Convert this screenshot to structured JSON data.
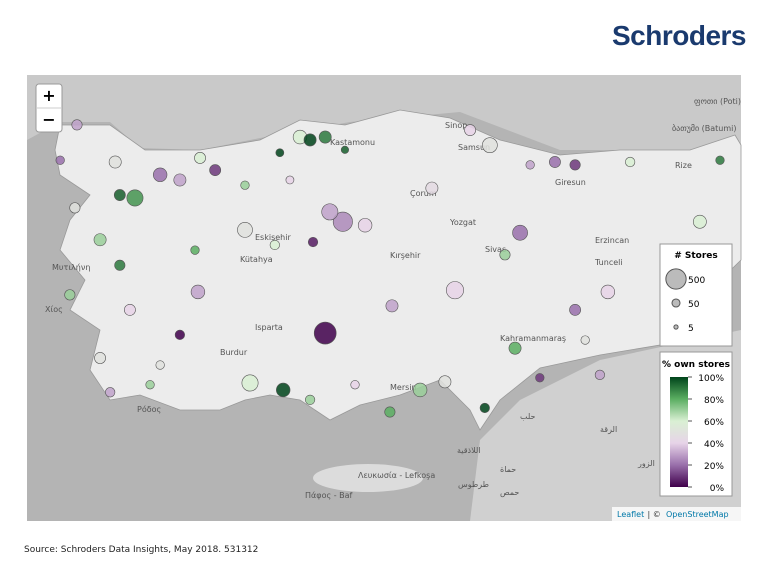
{
  "brand": "Schroders",
  "source": "Source: Schroders Data Insights, May 2018. 531312",
  "zoom_in": "+",
  "zoom_out": "−",
  "attribution": {
    "leaflet": "Leaflet",
    "separator": " | © ",
    "osm": "OpenStreetMap"
  },
  "place_labels": [
    "Sinop",
    "Samsun",
    "Kastamonu",
    "Çorum",
    "Yozgat",
    "Sivas",
    "Erzincan",
    "Tunceli",
    "Giresun",
    "Rize",
    "Kırşehir",
    "Eskişehir",
    "Kütahya",
    "Isparta",
    "Burdur",
    "Kahramanmaraş",
    "Mersin",
    "Μυτιλήνη",
    "Χίος",
    "Ρόδος",
    "Λευκωσία - Lefkoşa",
    "Πάφος - Baf",
    "ბათუმი (Batumi)",
    "ფოთი (Poti)",
    "حلب",
    "الرقة",
    "حماة",
    "طرطوس",
    "حمص",
    "اللاذقية",
    "الزور"
  ],
  "legend": {
    "size_title": "# Stores",
    "sizes": [
      500,
      50,
      5
    ],
    "color_title": "% own stores",
    "color_ticks": [
      {
        "value": 100,
        "label": "100%"
      },
      {
        "value": 80,
        "label": "80%"
      },
      {
        "value": 60,
        "label": "60%"
      },
      {
        "value": 40,
        "label": "40%"
      },
      {
        "value": 20,
        "label": "20%"
      },
      {
        "value": 0,
        "label": "0%"
      }
    ],
    "colors": [
      "#00441b",
      "#5aae61",
      "#d9f0d3",
      "#e7d4e8",
      "#9970ab",
      "#40004b"
    ]
  },
  "points": [
    {
      "lon": 32.7,
      "lat": 37.75,
      "stores": 600,
      "own_pct": 0
    },
    {
      "lon": 33.12,
      "lat": 39.67,
      "stores": 450,
      "own_pct": 25
    },
    {
      "lon": 32.81,
      "lat": 39.84,
      "stores": 300,
      "own_pct": 30
    },
    {
      "lon": 33.65,
      "lat": 39.61,
      "stores": 200,
      "own_pct": 40
    },
    {
      "lon": 35.79,
      "lat": 38.49,
      "stores": 350,
      "own_pct": 40
    },
    {
      "lon": 35.24,
      "lat": 40.25,
      "stores": 150,
      "own_pct": 45
    },
    {
      "lon": 30.91,
      "lat": 36.89,
      "stores": 300,
      "own_pct": 60
    },
    {
      "lon": 31.7,
      "lat": 36.77,
      "stores": 200,
      "own_pct": 100
    },
    {
      "lon": 37.34,
      "lat": 39.48,
      "stores": 250,
      "own_pct": 20
    },
    {
      "lon": 39.43,
      "lat": 38.46,
      "stores": 200,
      "own_pct": 40
    },
    {
      "lon": 41.62,
      "lat": 39.67,
      "stores": 180,
      "own_pct": 60
    },
    {
      "lon": 30.79,
      "lat": 39.53,
      "stores": 250,
      "own_pct": 50
    },
    {
      "lon": 29.67,
      "lat": 38.46,
      "stores": 200,
      "own_pct": 30
    },
    {
      "lon": 34.29,
      "lat": 38.22,
      "stores": 150,
      "own_pct": 30
    },
    {
      "lon": 34.96,
      "lat": 36.77,
      "stores": 200,
      "own_pct": 70
    },
    {
      "lon": 35.55,
      "lat": 36.91,
      "stores": 150,
      "own_pct": 50
    },
    {
      "lon": 37.22,
      "lat": 37.49,
      "stores": 150,
      "own_pct": 80
    },
    {
      "lon": 38.65,
      "lat": 38.15,
      "stores": 120,
      "own_pct": 20
    },
    {
      "lon": 36.98,
      "lat": 39.1,
      "stores": 100,
      "own_pct": 70
    },
    {
      "lon": 32.1,
      "lat": 41.13,
      "stores": 200,
      "own_pct": 60
    },
    {
      "lon": 32.7,
      "lat": 41.13,
      "stores": 150,
      "own_pct": 90
    },
    {
      "lon": 32.34,
      "lat": 41.08,
      "stores": 150,
      "own_pct": 100
    },
    {
      "lon": 36.62,
      "lat": 40.99,
      "stores": 250,
      "own_pct": 50
    },
    {
      "lon": 36.15,
      "lat": 41.25,
      "stores": 120,
      "own_pct": 40
    },
    {
      "lon": 38.17,
      "lat": 40.7,
      "stores": 120,
      "own_pct": 20
    },
    {
      "lon": 38.65,
      "lat": 40.65,
      "stores": 100,
      "own_pct": 10
    },
    {
      "lon": 39.96,
      "lat": 40.7,
      "stores": 80,
      "own_pct": 60
    },
    {
      "lon": 28.17,
      "lat": 40.08,
      "stores": 300,
      "own_pct": 85
    },
    {
      "lon": 27.81,
      "lat": 40.13,
      "stores": 120,
      "own_pct": 95
    },
    {
      "lon": 28.77,
      "lat": 40.48,
      "stores": 200,
      "own_pct": 20
    },
    {
      "lon": 29.24,
      "lat": 40.39,
      "stores": 150,
      "own_pct": 30
    },
    {
      "lon": 29.72,
      "lat": 40.77,
      "stores": 120,
      "own_pct": 60
    },
    {
      "lon": 30.08,
      "lat": 40.56,
      "stores": 120,
      "own_pct": 10
    },
    {
      "lon": 26.79,
      "lat": 41.34,
      "stores": 100,
      "own_pct": 30
    },
    {
      "lon": 27.7,
      "lat": 40.7,
      "stores": 150,
      "own_pct": 50
    },
    {
      "lon": 26.74,
      "lat": 39.91,
      "stores": 100,
      "own_pct": 50
    },
    {
      "lon": 27.34,
      "lat": 39.36,
      "stores": 150,
      "own_pct": 70
    },
    {
      "lon": 26.62,
      "lat": 38.41,
      "stores": 100,
      "own_pct": 70
    },
    {
      "lon": 27.81,
      "lat": 38.92,
      "stores": 100,
      "own_pct": 90
    },
    {
      "lon": 28.05,
      "lat": 38.15,
      "stores": 120,
      "own_pct": 40
    },
    {
      "lon": 27.34,
      "lat": 37.32,
      "stores": 120,
      "own_pct": 50
    },
    {
      "lon": 27.58,
      "lat": 36.73,
      "stores": 80,
      "own_pct": 30
    },
    {
      "lon": 28.53,
      "lat": 36.86,
      "stores": 60,
      "own_pct": 70
    },
    {
      "lon": 29.24,
      "lat": 37.72,
      "stores": 80,
      "own_pct": 0
    },
    {
      "lon": 32.34,
      "lat": 36.6,
      "stores": 80,
      "own_pct": 70
    },
    {
      "lon": 34.24,
      "lat": 36.39,
      "stores": 100,
      "own_pct": 80
    },
    {
      "lon": 36.5,
      "lat": 36.46,
      "stores": 80,
      "own_pct": 100
    },
    {
      "lon": 37.81,
      "lat": 36.98,
      "stores": 60,
      "own_pct": 10
    },
    {
      "lon": 37.58,
      "lat": 40.65,
      "stores": 60,
      "own_pct": 30
    },
    {
      "lon": 31.5,
      "lat": 39.27,
      "stores": 80,
      "own_pct": 60
    },
    {
      "lon": 32.41,
      "lat": 39.32,
      "stores": 80,
      "own_pct": 5
    },
    {
      "lon": 33.41,
      "lat": 36.86,
      "stores": 60,
      "own_pct": 40
    },
    {
      "lon": 39.24,
      "lat": 37.03,
      "stores": 80,
      "own_pct": 30
    },
    {
      "lon": 38.89,
      "lat": 37.63,
      "stores": 60,
      "own_pct": 50
    },
    {
      "lon": 42.1,
      "lat": 40.73,
      "stores": 60,
      "own_pct": 90
    },
    {
      "lon": 30.79,
      "lat": 40.3,
      "stores": 60,
      "own_pct": 70
    },
    {
      "lon": 31.86,
      "lat": 40.39,
      "stores": 50,
      "own_pct": 40
    },
    {
      "lon": 33.17,
      "lat": 40.91,
      "stores": 40,
      "own_pct": 95
    },
    {
      "lon": 31.62,
      "lat": 40.86,
      "stores": 50,
      "own_pct": 100
    },
    {
      "lon": 28.77,
      "lat": 37.2,
      "stores": 60,
      "own_pct": 50
    },
    {
      "lon": 29.6,
      "lat": 39.18,
      "stores": 60,
      "own_pct": 80
    },
    {
      "lon": 26.39,
      "lat": 40.73,
      "stores": 60,
      "own_pct": 20
    }
  ]
}
